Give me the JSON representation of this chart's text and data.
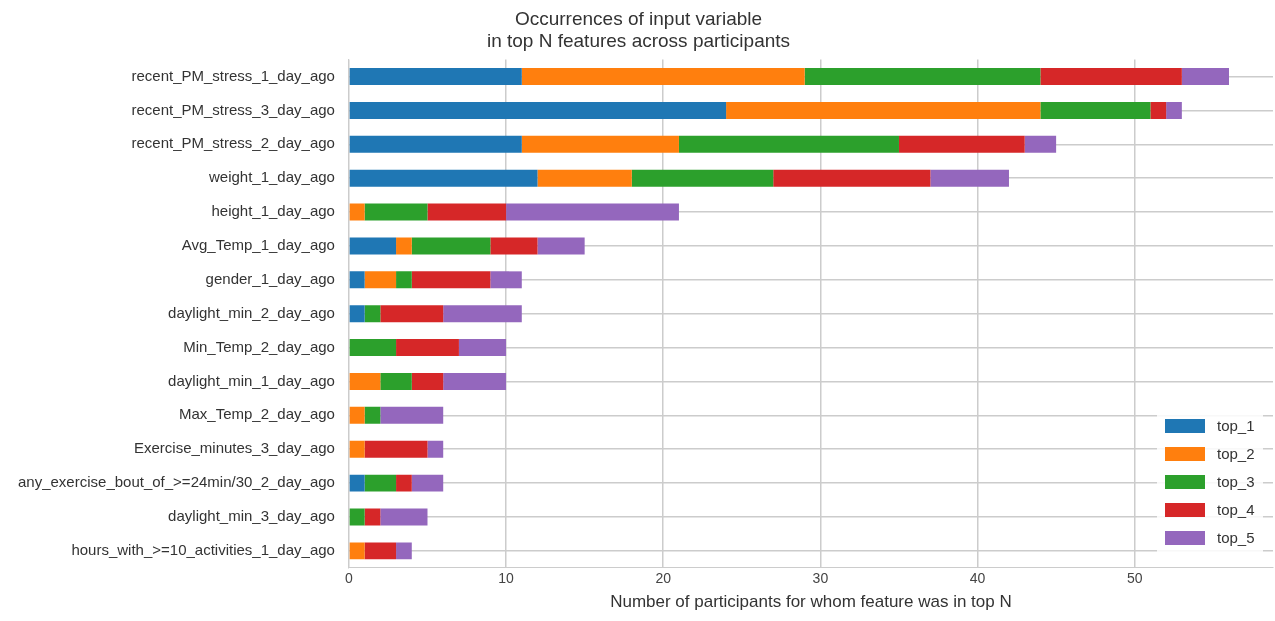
{
  "chart_data": {
    "type": "bar",
    "orientation": "horizontal",
    "stacked": true,
    "title": "Occurrences of input variable\nin top N features across participants",
    "xlabel": "Number of participants for whom feature was in top N",
    "categories": [
      "recent_PM_stress_1_day_ago",
      "recent_PM_stress_3_day_ago",
      "recent_PM_stress_2_day_ago",
      "weight_1_day_ago",
      "height_1_day_ago",
      "Avg_Temp_1_day_ago",
      "gender_1_day_ago",
      "daylight_min_2_day_ago",
      "Min_Temp_2_day_ago",
      "daylight_min_1_day_ago",
      "Max_Temp_2_day_ago",
      "Exercise_minutes_3_day_ago",
      "any_exercise_bout_of_>=24min/30_2_day_ago",
      "daylight_min_3_day_ago",
      "hours_with_>=10_activities_1_day_ago"
    ],
    "series": [
      {
        "name": "top_1",
        "color": "#1f77b4",
        "values": [
          11,
          24,
          11,
          12,
          0,
          3,
          1,
          1,
          0,
          0,
          0,
          0,
          1,
          0,
          0
        ]
      },
      {
        "name": "top_2",
        "color": "#ff7f0e",
        "values": [
          18,
          20,
          10,
          6,
          1,
          1,
          2,
          0,
          0,
          2,
          1,
          1,
          0,
          0,
          1
        ]
      },
      {
        "name": "top_3",
        "color": "#2ca02c",
        "values": [
          15,
          7,
          14,
          9,
          4,
          5,
          1,
          1,
          3,
          2,
          1,
          0,
          2,
          1,
          0
        ]
      },
      {
        "name": "top_4",
        "color": "#d62728",
        "values": [
          9,
          1,
          8,
          10,
          5,
          3,
          5,
          4,
          4,
          2,
          0,
          4,
          1,
          1,
          2
        ]
      },
      {
        "name": "top_5",
        "color": "#9467bd",
        "values": [
          3,
          1,
          2,
          5,
          11,
          3,
          2,
          5,
          3,
          4,
          4,
          1,
          2,
          3,
          1
        ]
      }
    ],
    "xlim": [
      0,
      58.8
    ],
    "xticks": [
      0,
      10,
      20,
      30,
      40,
      50
    ],
    "grid": true,
    "legend": "bottom right"
  }
}
